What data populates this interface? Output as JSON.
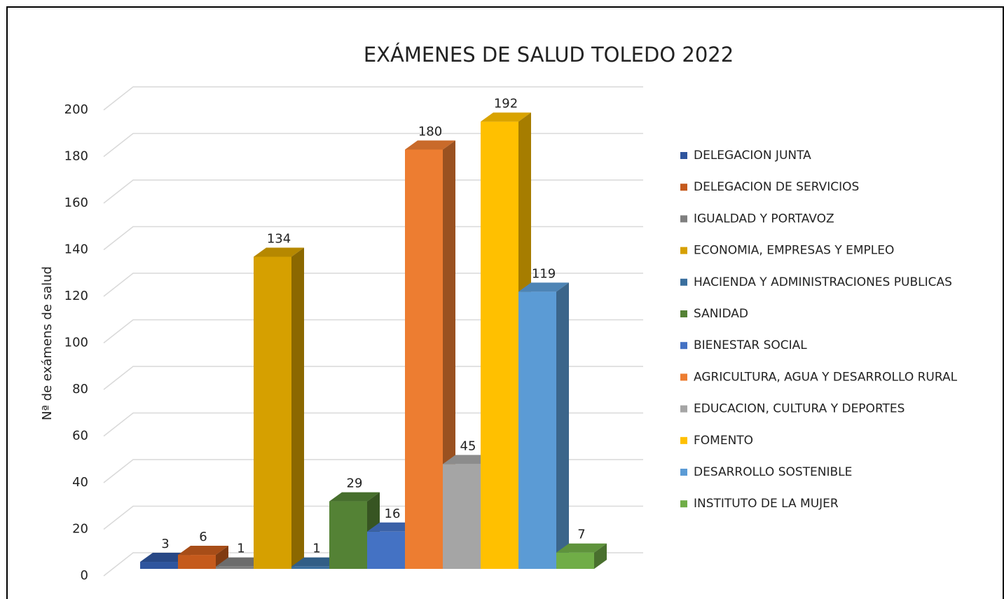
{
  "chart_data": {
    "type": "bar3d",
    "title": "EXÁMENES DE SALUD TOLEDO 2022",
    "ylabel": "Nª de exámens de salud",
    "ylim": [
      0,
      200
    ],
    "yticks": [
      0,
      20,
      40,
      60,
      80,
      100,
      120,
      140,
      160,
      180,
      200
    ],
    "grid": true,
    "legend": "right",
    "series": [
      {
        "name": "DELEGACION JUNTA",
        "color": "#2f559e",
        "values": [
          3
        ]
      },
      {
        "name": "DELEGACION DE SERVICIOS",
        "color": "#c55a1c",
        "values": [
          6
        ]
      },
      {
        "name": "IGUALDAD Y PORTAVOZ",
        "color": "#7f7f7f",
        "values": [
          1
        ]
      },
      {
        "name": "ECONOMIA, EMPRESAS Y EMPLEO",
        "color": "#d6a000",
        "values": [
          134
        ]
      },
      {
        "name": "HACIENDA Y ADMINISTRACIONES PUBLICAS",
        "color": "#3a6f9e",
        "values": [
          1
        ]
      },
      {
        "name": "SANIDAD",
        "color": "#548235",
        "values": [
          29
        ]
      },
      {
        "name": "BIENESTAR SOCIAL",
        "color": "#4472c4",
        "values": [
          16
        ]
      },
      {
        "name": "AGRICULTURA, AGUA Y DESARROLLO RURAL",
        "color": "#ed7d31",
        "values": [
          180
        ]
      },
      {
        "name": "EDUCACION, CULTURA Y DEPORTES",
        "color": "#a5a5a5",
        "values": [
          45
        ]
      },
      {
        "name": "FOMENTO",
        "color": "#ffc000",
        "values": [
          192
        ]
      },
      {
        "name": "DESARROLLO SOSTENIBLE",
        "color": "#5b9bd5",
        "values": [
          119
        ]
      },
      {
        "name": "INSTITUTO DE LA MUJER",
        "color": "#70ad47",
        "values": [
          7
        ]
      }
    ]
  }
}
